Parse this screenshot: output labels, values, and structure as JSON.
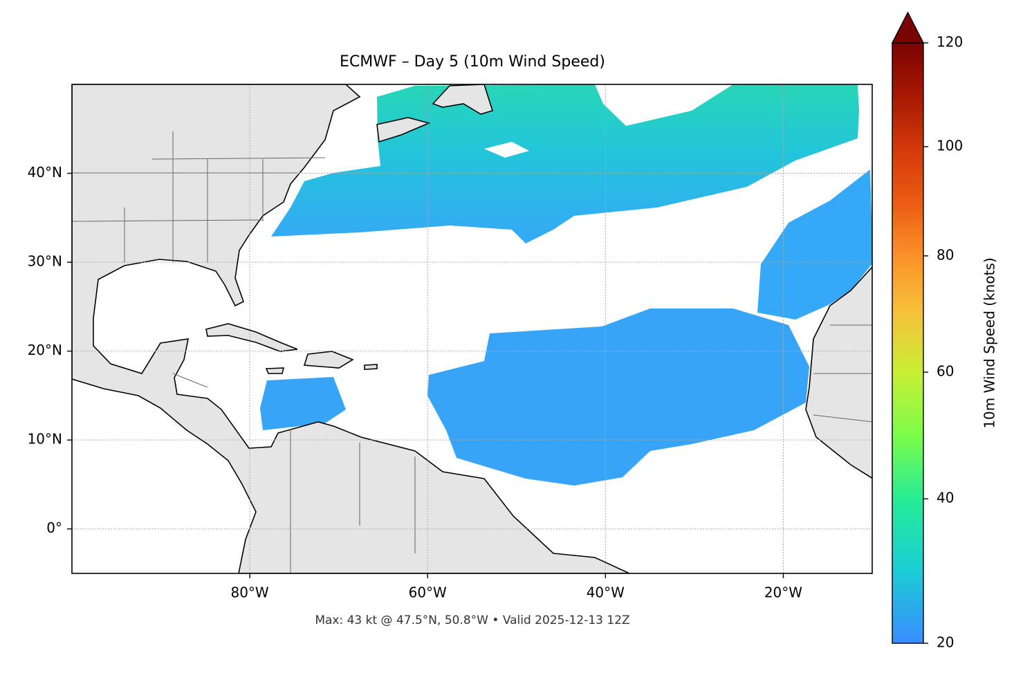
{
  "chart_data": {
    "type": "map",
    "title": "ECMWF – Day 5 (10m Wind Speed)",
    "footnote": "Max: 43 kt @ 47.5°N, 50.8°W • Valid 2025-12-13 12Z",
    "xlim": [
      -100,
      -10
    ],
    "ylim": [
      -5,
      50
    ],
    "xticks": [
      {
        "value": -80,
        "label": "80°W"
      },
      {
        "value": -60,
        "label": "60°W"
      },
      {
        "value": -40,
        "label": "40°W"
      },
      {
        "value": -20,
        "label": "20°W"
      }
    ],
    "yticks": [
      {
        "value": 0,
        "label": "0°"
      },
      {
        "value": 10,
        "label": "10°N"
      },
      {
        "value": 20,
        "label": "20°N"
      },
      {
        "value": 30,
        "label": "30°N"
      },
      {
        "value": 40,
        "label": "40°N"
      }
    ],
    "grid": true,
    "colorbar": {
      "label": "10m Wind Speed (knots)",
      "clim": [
        20,
        120
      ],
      "ticks": [
        20,
        40,
        60,
        80,
        100,
        120
      ],
      "power": 0.75,
      "extend": "max"
    }
  }
}
